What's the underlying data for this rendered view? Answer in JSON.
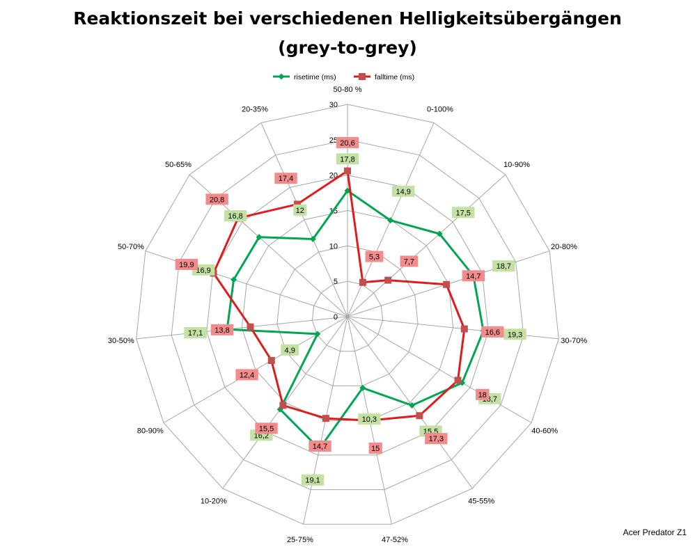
{
  "chart_data": {
    "type": "radar",
    "title_line1": "Reaktionszeit bei verschiedenen Helligkeitsübergängen",
    "title_line2": "(grey-to-grey)",
    "categories": [
      "50-80 %",
      "0-100%",
      "10-90%",
      "20-80%",
      "30-70%",
      "40-60%",
      "45-55%",
      "47-52%",
      "25-75%",
      "10-20%",
      "80-90%",
      "30-50%",
      "50-70%",
      "50-65%",
      "20-35%"
    ],
    "rlim": [
      0,
      30
    ],
    "ticks": [
      "0",
      "5",
      "10",
      "15",
      "20",
      "25",
      "30"
    ],
    "grid": true,
    "legend_position": "top",
    "series": [
      {
        "name": "risetime (ms)",
        "color": "#00A651",
        "label_color": "#C4E1A4",
        "marker": "diamond",
        "values": [
          17.8,
          14.9,
          17.5,
          18.7,
          19.3,
          18.7,
          15.5,
          10.3,
          19.1,
          16.2,
          4.9,
          17.1,
          16.9,
          16.8,
          12
        ],
        "labels": [
          "17,8",
          "14,9",
          "17,5",
          "18,7",
          "19,3",
          "18,7",
          "15,5",
          "10,3",
          "19,1",
          "16,2",
          "4,9",
          "17,1",
          "16,9",
          "16,8",
          "12"
        ]
      },
      {
        "name": "falltime (ms)",
        "color": "#E01B1B",
        "marker_color": "#C0504D",
        "label_color": "#F28B8B",
        "marker": "square",
        "values": [
          20.6,
          5.3,
          7.7,
          14.7,
          16.6,
          18,
          17.3,
          15,
          14.7,
          15.5,
          12.4,
          13.8,
          19.9,
          20.8,
          17.4
        ],
        "labels": [
          "20,6",
          "5,3",
          "7,7",
          "14,7",
          "16,6",
          "18",
          "17,3",
          "15",
          "14,7",
          "15,5",
          "12,4",
          "13,8",
          "19,9",
          "20,8",
          "17,4"
        ]
      }
    ]
  },
  "footer": {
    "device": "Acer Predator Z1"
  }
}
